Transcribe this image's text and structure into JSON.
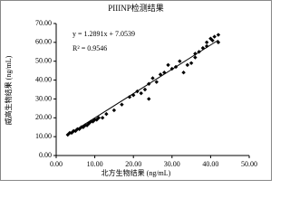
{
  "chart_data": {
    "type": "scatter",
    "title": "PIIINP检测结果",
    "x_label": "北方生物结果 (ng/mL)",
    "y_label": "威高生物结果 (ng/mL)",
    "equation": "y = 1.2891x + 7.0539",
    "r_squared_label": "R² = 0.9546",
    "trendline": {
      "slope": 1.2891,
      "intercept": 7.0539,
      "x": [
        3,
        42
      ],
      "color": "#000000"
    },
    "series": [
      {
        "color": "#000000",
        "x": [
          3,
          3.5,
          4,
          4.5,
          5,
          5.5,
          6,
          6.5,
          7,
          7.5,
          8,
          8.5,
          9,
          9.5,
          10,
          10.5,
          11,
          12,
          13,
          15,
          17,
          19,
          20,
          21,
          22,
          23,
          24,
          25,
          26,
          27,
          28,
          29,
          30,
          31,
          32,
          33,
          34,
          35,
          36,
          37,
          38,
          39,
          40,
          41,
          42,
          39,
          40.5,
          42,
          36,
          24
        ],
        "values": [
          11,
          12,
          12,
          13,
          13,
          14,
          14,
          15,
          15,
          16,
          16,
          17,
          18,
          18,
          19,
          19,
          20,
          20,
          22,
          24,
          27,
          31,
          32,
          34,
          33,
          35,
          38,
          41,
          39,
          43,
          44,
          48,
          46,
          47,
          50,
          44,
          48,
          49,
          52,
          55,
          57,
          60,
          62,
          63,
          64,
          58,
          61,
          60,
          54,
          30
        ]
      }
    ],
    "xlim": [
      0,
      50
    ],
    "ylim": [
      0,
      70
    ],
    "xticks": [
      {
        "value": 0,
        "label": "0.00"
      },
      {
        "value": 10,
        "label": "10.00"
      },
      {
        "value": 20,
        "label": "20.00"
      },
      {
        "value": 30,
        "label": "30.00"
      },
      {
        "value": 40,
        "label": "40.00"
      },
      {
        "value": 50,
        "label": "50.00"
      }
    ],
    "yticks": [
      {
        "value": 0,
        "label": "0.00"
      },
      {
        "value": 10,
        "label": "10.00"
      },
      {
        "value": 20,
        "label": "20.00"
      },
      {
        "value": 30,
        "label": "30.00"
      },
      {
        "value": 40,
        "label": "40.00"
      },
      {
        "value": 50,
        "label": "50.00"
      },
      {
        "value": 60,
        "label": "60.00"
      },
      {
        "value": 70,
        "label": "70.00"
      }
    ]
  }
}
